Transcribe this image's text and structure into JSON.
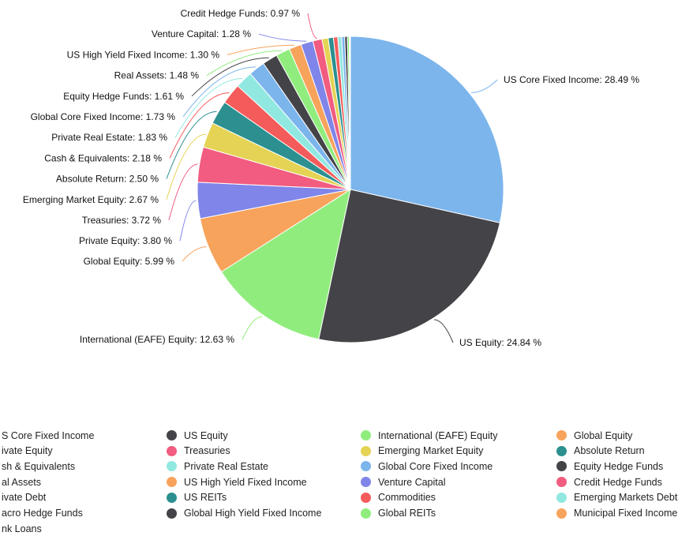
{
  "chart_data": {
    "type": "pie",
    "title": "",
    "slices": [
      {
        "name": "US Core Fixed Income",
        "value": 28.49,
        "label": "US Core Fixed Income: 28.49 %",
        "color": "#7cb5ec"
      },
      {
        "name": "US Equity",
        "value": 24.84,
        "label": "US Equity: 24.84 %",
        "color": "#434348"
      },
      {
        "name": "International (EAFE) Equity",
        "value": 12.63,
        "label": "International (EAFE) Equity: 12.63 %",
        "color": "#90ed7d"
      },
      {
        "name": "Global Equity",
        "value": 5.99,
        "label": "Global Equity: 5.99 %",
        "color": "#f7a35c"
      },
      {
        "name": "Private Equity",
        "value": 3.8,
        "label": "Private Equity: 3.80 %",
        "color": "#8085e9"
      },
      {
        "name": "Treasuries",
        "value": 3.72,
        "label": "Treasuries: 3.72 %",
        "color": "#f15c80"
      },
      {
        "name": "Emerging Market Equity",
        "value": 2.67,
        "label": "Emerging Market Equity: 2.67 %",
        "color": "#e4d354"
      },
      {
        "name": "Absolute Return",
        "value": 2.5,
        "label": "Absolute Return: 2.50 %",
        "color": "#2b908f"
      },
      {
        "name": "Cash & Equivalents",
        "value": 2.18,
        "label": "Cash & Equivalents: 2.18 %",
        "color": "#f45b5b"
      },
      {
        "name": "Private Real Estate",
        "value": 1.83,
        "label": "Private Real Estate: 1.83 %",
        "color": "#91e8e1"
      },
      {
        "name": "Global Core Fixed Income",
        "value": 1.73,
        "label": "Global Core Fixed Income: 1.73 %",
        "color": "#7cb5ec"
      },
      {
        "name": "Equity Hedge Funds",
        "value": 1.61,
        "label": "Equity Hedge Funds: 1.61 %",
        "color": "#434348"
      },
      {
        "name": "Real Assets",
        "value": 1.48,
        "label": "Real Assets: 1.48 %",
        "color": "#90ed7d"
      },
      {
        "name": "US High Yield Fixed Income",
        "value": 1.3,
        "label": "US High Yield Fixed Income: 1.30 %",
        "color": "#f7a35c"
      },
      {
        "name": "Venture Capital",
        "value": 1.28,
        "label": "Venture Capital: 1.28 %",
        "color": "#8085e9"
      },
      {
        "name": "Credit Hedge Funds",
        "value": 0.97,
        "label": "Credit Hedge Funds: 0.97 %",
        "color": "#f15c80"
      },
      {
        "name": "Private Debt",
        "value": 0.65,
        "label": "",
        "color": "#e4d354"
      },
      {
        "name": "US REITs",
        "value": 0.55,
        "label": "",
        "color": "#2b908f"
      },
      {
        "name": "Commodities",
        "value": 0.45,
        "label": "",
        "color": "#f45b5b"
      },
      {
        "name": "Emerging Markets Debt",
        "value": 0.4,
        "label": "",
        "color": "#91e8e1"
      },
      {
        "name": "Macro Hedge Funds",
        "value": 0.33,
        "label": "",
        "color": "#7cb5ec"
      },
      {
        "name": "Global High Yield Fixed Income",
        "value": 0.28,
        "label": "",
        "color": "#434348"
      },
      {
        "name": "Global REITs",
        "value": 0.2,
        "label": "",
        "color": "#90ed7d"
      },
      {
        "name": "Municipal Fixed Income",
        "value": 0.08,
        "label": "",
        "color": "#f7a35c"
      },
      {
        "name": "Bank Loans",
        "value": 0.04,
        "label": "",
        "color": "#8085e9"
      }
    ],
    "legend": {
      "placement": "bottom",
      "items": [
        {
          "text": "S Core Fixed Income",
          "color": "#7cb5ec"
        },
        {
          "text": "US Equity",
          "color": "#434348"
        },
        {
          "text": "International (EAFE) Equity",
          "color": "#90ed7d"
        },
        {
          "text": "Global Equity",
          "color": "#f7a35c"
        },
        {
          "text": "ivate Equity",
          "color": "#8085e9"
        },
        {
          "text": "Treasuries",
          "color": "#f15c80"
        },
        {
          "text": "Emerging Market Equity",
          "color": "#e4d354"
        },
        {
          "text": "Absolute Return",
          "color": "#2b908f"
        },
        {
          "text": "sh & Equivalents",
          "color": "#f45b5b"
        },
        {
          "text": "Private Real Estate",
          "color": "#91e8e1"
        },
        {
          "text": "Global Core Fixed Income",
          "color": "#7cb5ec"
        },
        {
          "text": "Equity Hedge Funds",
          "color": "#434348"
        },
        {
          "text": "al Assets",
          "color": "#90ed7d"
        },
        {
          "text": "US High Yield Fixed Income",
          "color": "#f7a35c"
        },
        {
          "text": "Venture Capital",
          "color": "#8085e9"
        },
        {
          "text": "Credit Hedge Funds",
          "color": "#f15c80"
        },
        {
          "text": "ivate Debt",
          "color": "#e4d354"
        },
        {
          "text": "US REITs",
          "color": "#2b908f"
        },
        {
          "text": "Commodities",
          "color": "#f45b5b"
        },
        {
          "text": "Emerging Markets Debt",
          "color": "#91e8e1"
        },
        {
          "text": "acro Hedge Funds",
          "color": "#7cb5ec"
        },
        {
          "text": "Global High Yield Fixed Income",
          "color": "#434348"
        },
        {
          "text": "Global REITs",
          "color": "#90ed7d"
        },
        {
          "text": "Municipal Fixed Income",
          "color": "#f7a35c"
        },
        {
          "text": "nk Loans",
          "color": "#8085e9"
        }
      ]
    }
  }
}
